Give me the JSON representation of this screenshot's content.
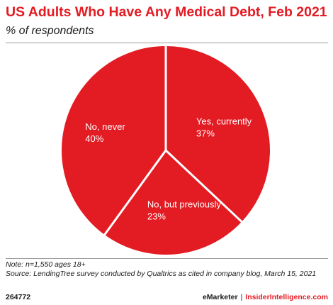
{
  "header": {
    "title": "US Adults Who Have Any Medical Debt, Feb 2021",
    "subtitle": "% of respondents"
  },
  "chart_data": {
    "type": "pie",
    "title": "US Adults Who Have Any Medical Debt, Feb 2021",
    "subtitle": "% of respondents",
    "slices": [
      {
        "label": "Yes, currently",
        "value": 37,
        "display": "37%"
      },
      {
        "label": "No, but previously",
        "value": 23,
        "display": "23%"
      },
      {
        "label": "No, never",
        "value": 40,
        "display": "40%"
      }
    ],
    "start": "12 o'clock",
    "direction": "clockwise",
    "legend": "none",
    "colors": {
      "slice": "#e31b23",
      "separator": "#ffffff",
      "label": "#ffffff"
    }
  },
  "notes": {
    "note": "Note: n=1,550 ages 18+",
    "source": "Source: LendingTree survey conducted by Qualtrics as cited in company blog, March 15, 2021"
  },
  "footer": {
    "id": "264772",
    "brand_primary": "eMarketer",
    "separator": "|",
    "brand_secondary": "InsiderIntelligence.com"
  }
}
